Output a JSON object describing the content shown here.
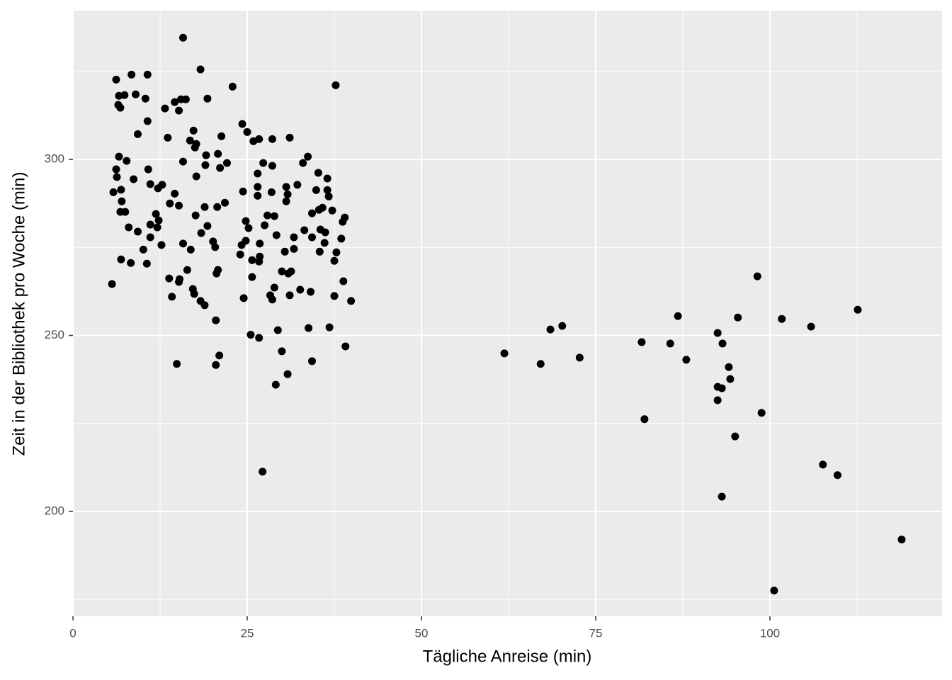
{
  "chart_data": {
    "type": "scatter",
    "x_label": "Tägliche Anreise (min)",
    "y_label": "Zeit in der Bibliothek pro Woche (min)",
    "color": "#000000",
    "grid": true,
    "xlim": [
      0,
      124.7
    ],
    "ylim": [
      170.2,
      342.3
    ],
    "xticks": [
      0,
      25,
      50,
      75,
      100
    ],
    "yticks": [
      200,
      250,
      300
    ],
    "x": [
      61.9,
      67.1,
      68.5,
      70.2,
      72.7,
      81.6,
      82.0,
      85.7,
      86.8,
      88.0,
      92.5,
      92.5,
      92.5,
      93.1,
      93.2,
      93.1,
      94.1,
      94.3,
      95.0,
      95.4,
      98.2,
      98.8,
      100.6,
      101.7,
      105.9,
      107.6,
      109.7,
      112.6,
      118.9,
      15.8,
      18.3,
      6.2,
      8.4,
      10.7,
      22.9,
      37.7,
      6.6,
      7.4,
      9.0,
      10.4,
      15.5,
      16.2,
      19.3,
      14.6,
      6.5,
      6.8,
      13.2,
      15.2,
      10.7,
      24.3,
      25.0,
      17.3,
      9.3,
      13.6,
      21.3,
      26.7,
      28.6,
      31.1,
      25.9,
      16.8,
      17.7,
      17.5,
      6.6,
      7.7,
      19.1,
      20.8,
      33.7,
      15.8,
      19.0,
      22.1,
      27.3,
      28.6,
      21.1,
      33.0,
      6.2,
      10.8,
      35.2,
      6.3,
      17.7,
      26.5,
      36.5,
      8.7,
      11.1,
      12.8,
      26.5,
      30.6,
      32.2,
      6.9,
      12.2,
      14.6,
      24.4,
      5.8,
      28.5,
      26.5,
      30.8,
      34.9,
      36.5,
      36.7,
      30.6,
      7.0,
      13.9,
      21.8,
      15.2,
      18.9,
      20.7,
      35.8,
      35.3,
      37.2,
      6.8,
      7.5,
      11.9,
      17.6,
      27.9,
      28.9,
      34.3,
      39.0,
      38.7,
      12.3,
      24.8,
      11.1,
      27.5,
      19.3,
      8.0,
      12.1,
      25.2,
      35.5,
      33.2,
      36.2,
      9.3,
      18.4,
      29.2,
      11.1,
      31.7,
      34.3,
      38.5,
      20.1,
      24.8,
      15.8,
      26.8,
      36.1,
      12.7,
      24.2,
      20.4,
      16.9,
      31.7,
      30.4,
      35.4,
      10.1,
      37.8,
      24.0,
      26.8,
      6.9,
      25.7,
      26.7,
      37.5,
      8.3,
      10.6,
      16.4,
      29.97,
      31.3,
      20.8,
      20.6,
      30.9,
      25.7,
      13.8,
      15.3,
      15.2,
      38.8,
      5.6,
      28.9,
      17.2,
      32.6,
      34.1,
      17.4,
      31.1,
      14.2,
      24.5,
      28.3,
      37.5,
      28.6,
      39.9,
      18.3,
      18.9,
      20.5,
      33.8,
      36.8,
      29.4,
      25.5,
      26.7,
      39.1,
      29.97,
      21.0,
      14.9,
      20.5,
      34.3,
      30.8,
      29.1,
      27.2
    ],
    "values": [
      244.9,
      241.9,
      251.7,
      252.7,
      243.7,
      248.1,
      226.2,
      247.7,
      255.5,
      243.1,
      250.7,
      235.4,
      231.6,
      235.0,
      247.7,
      204.2,
      241.0,
      237.6,
      221.3,
      255.1,
      266.8,
      228.0,
      177.5,
      254.7,
      252.5,
      213.3,
      210.3,
      257.3,
      192.0,
      334.6,
      325.6,
      322.7,
      324.1,
      324.1,
      320.7,
      321.1,
      318.1,
      318.3,
      318.5,
      317.3,
      317.1,
      317.1,
      317.3,
      316.3,
      315.5,
      314.7,
      314.5,
      313.9,
      310.9,
      310.1,
      307.8,
      308.2,
      307.2,
      306.2,
      306.6,
      305.8,
      305.8,
      306.2,
      305.2,
      305.4,
      304.4,
      303.4,
      300.8,
      299.6,
      301.2,
      301.6,
      300.8,
      299.4,
      298.4,
      299.0,
      299.0,
      298.2,
      297.6,
      299.0,
      297.2,
      297.2,
      296.2,
      295.0,
      295.2,
      296.0,
      294.6,
      294.4,
      293.0,
      292.8,
      292.2,
      292.2,
      292.8,
      291.4,
      291.8,
      290.3,
      290.9,
      290.7,
      290.7,
      289.7,
      290.1,
      291.3,
      291.3,
      289.5,
      288.1,
      288.1,
      287.5,
      287.7,
      286.9,
      286.5,
      286.5,
      286.3,
      285.7,
      285.5,
      285.1,
      285.1,
      284.5,
      284.1,
      284.1,
      283.9,
      284.7,
      283.5,
      282.3,
      282.7,
      282.5,
      281.5,
      281.3,
      281.1,
      280.7,
      280.7,
      280.5,
      280.1,
      279.9,
      279.3,
      279.5,
      279.1,
      278.5,
      277.9,
      277.9,
      277.9,
      277.5,
      276.7,
      276.9,
      276.1,
      276.1,
      276.3,
      275.7,
      275.7,
      275.1,
      274.4,
      274.6,
      273.8,
      273.8,
      274.4,
      273.6,
      273.0,
      272.4,
      271.6,
      271.4,
      271.0,
      271.2,
      270.6,
      270.4,
      268.6,
      268.2,
      268.2,
      268.6,
      267.6,
      267.6,
      266.6,
      266.2,
      266.0,
      265.2,
      265.4,
      264.6,
      263.6,
      263.2,
      263.0,
      262.4,
      261.8,
      261.4,
      261.0,
      260.6,
      261.4,
      261.2,
      260.2,
      259.8,
      259.8,
      258.6,
      254.3,
      252.1,
      252.3,
      251.5,
      250.2,
      249.3,
      246.9,
      245.5,
      244.3,
      241.9,
      241.6,
      242.7,
      239.0,
      236.0,
      211.3
    ]
  }
}
